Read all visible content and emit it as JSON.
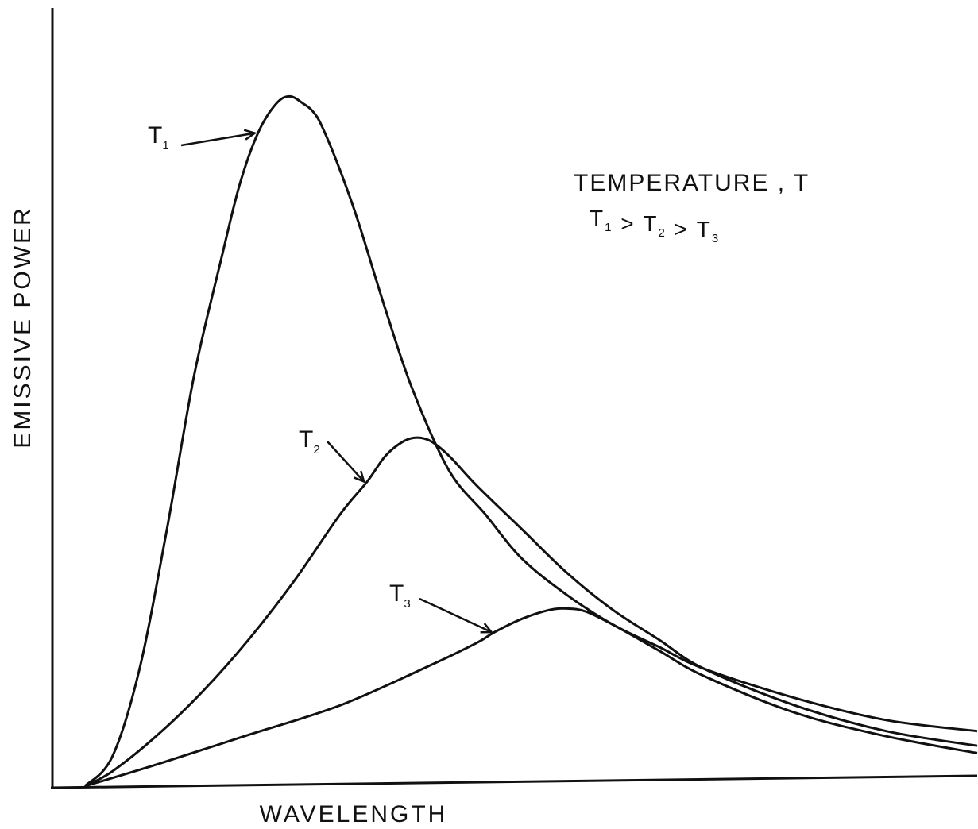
{
  "chart_data": {
    "type": "line",
    "xlabel": "WAVELENGTH",
    "ylabel": "EMISSIVE POWER",
    "grid": false,
    "legend": {
      "title": "TEMPERATURE , T",
      "placement": "top-right"
    },
    "xlim": [
      0,
      100
    ],
    "ylim": [
      0,
      100
    ],
    "series": [
      {
        "name": "T1",
        "base": "T",
        "sub": "1",
        "color": "#111111",
        "x": [
          2,
          5,
          8,
          11,
          14,
          17,
          19,
          21,
          23,
          24.5,
          26,
          27,
          28,
          30,
          32,
          35,
          38,
          42,
          46,
          50,
          55,
          60,
          65,
          70,
          80,
          90,
          100
        ],
        "y": [
          0,
          4,
          16,
          35,
          56,
          72,
          82,
          89,
          93,
          94,
          93,
          92,
          90,
          84,
          77,
          65,
          54,
          43,
          37,
          31,
          26,
          22,
          19,
          16,
          12,
          9,
          7.5
        ]
      },
      {
        "name": "T2",
        "base": "T",
        "sub": "2",
        "color": "#111111",
        "x": [
          2,
          5,
          10,
          15,
          20,
          25,
          30,
          33,
          35,
          37,
          38.5,
          40,
          42,
          45,
          50,
          55,
          60,
          65,
          70,
          80,
          90,
          100
        ],
        "y": [
          0,
          2,
          7,
          13,
          20,
          28,
          37,
          41.5,
          45,
          47,
          47.5,
          47,
          45,
          41,
          35,
          29,
          24,
          20,
          16,
          11,
          7.5,
          5.5
        ]
      },
      {
        "name": "T3",
        "base": "T",
        "sub": "3",
        "color": "#111111",
        "x": [
          2,
          10,
          20,
          30,
          40,
          45,
          47,
          50,
          53,
          55,
          57,
          60,
          65,
          70,
          80,
          90,
          100
        ],
        "y": [
          0,
          3,
          7,
          11,
          16.5,
          19.5,
          21,
          22.8,
          24,
          24.2,
          23.8,
          22,
          18.5,
          15,
          10,
          6.8,
          4.5
        ]
      }
    ],
    "annotations": [
      {
        "type": "legend-relation",
        "parts": [
          {
            "base": "T",
            "sub": "1"
          },
          {
            "text": " > "
          },
          {
            "base": "T",
            "sub": "2"
          },
          {
            "text": " > "
          },
          {
            "base": "T",
            "sub": "3"
          }
        ]
      }
    ]
  }
}
